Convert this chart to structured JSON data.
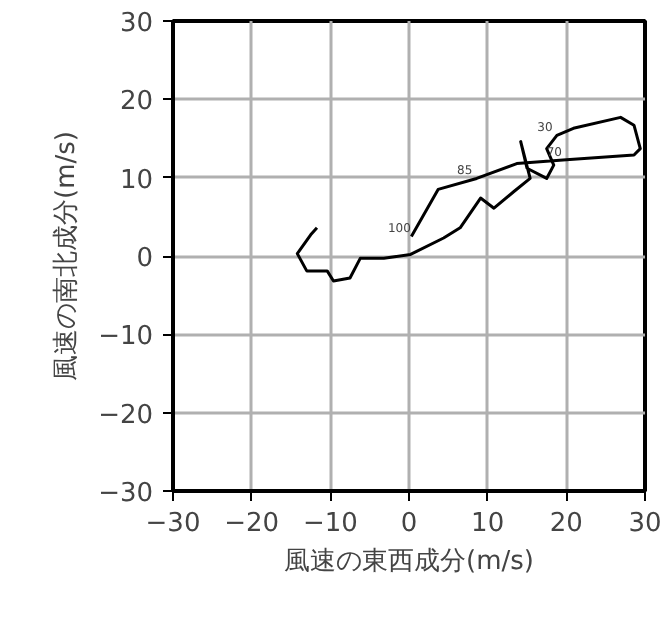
{
  "chart_data": {
    "type": "line",
    "xlabel": "風速の東西成分(m/s)",
    "ylabel": "風速の南北成分(m/s)",
    "series": [
      {
        "color": "#000000",
        "x": [
          -11.7,
          -12.5,
          -14.2,
          -13,
          -10.4,
          -9.6,
          -7.5,
          -6.2,
          -3.2,
          0.2,
          4.4,
          6.5,
          9.1,
          10.8,
          13.3,
          15.4,
          14.2,
          15,
          17.5,
          18.4,
          17.5,
          18.8,
          20.9,
          26.9,
          28.6,
          29.4,
          28.6,
          20,
          13.7,
          8.6,
          3.7,
          0.3
        ],
        "values": [
          3.6,
          2.7,
          0.3,
          -1.9,
          -1.9,
          -3.2,
          -2.8,
          -0.3,
          -0.3,
          0.2,
          2.3,
          3.6,
          7.4,
          6.1,
          8.2,
          9.9,
          14.6,
          11.2,
          9.9,
          11.6,
          13.7,
          15.4,
          16.3,
          17.7,
          16.7,
          13.7,
          12.9,
          12.3,
          11.8,
          9.9,
          8.5,
          2.5
        ]
      }
    ],
    "annotations": [
      {
        "text": "30",
        "x": 18.8,
        "y": 15.4
      },
      {
        "text": "70",
        "x": 20,
        "y": 12.3
      },
      {
        "text": "85",
        "x": 8.6,
        "y": 9.9
      },
      {
        "text": "100",
        "x": 0.3,
        "y": 2.5
      }
    ],
    "xlim": [
      -30,
      30
    ],
    "ylim": [
      -30,
      30
    ],
    "xticks": [
      {
        "value": -30,
        "label": "−30"
      },
      {
        "value": -20,
        "label": "−20"
      },
      {
        "value": -10,
        "label": "−10"
      },
      0,
      10,
      20,
      30
    ],
    "yticks": [
      {
        "value": -30,
        "label": "−30"
      },
      {
        "value": -20,
        "label": "−20"
      },
      {
        "value": -10,
        "label": "−10"
      },
      0,
      10,
      20,
      30
    ],
    "grid": true,
    "line_style": "solid",
    "marker": "none"
  }
}
